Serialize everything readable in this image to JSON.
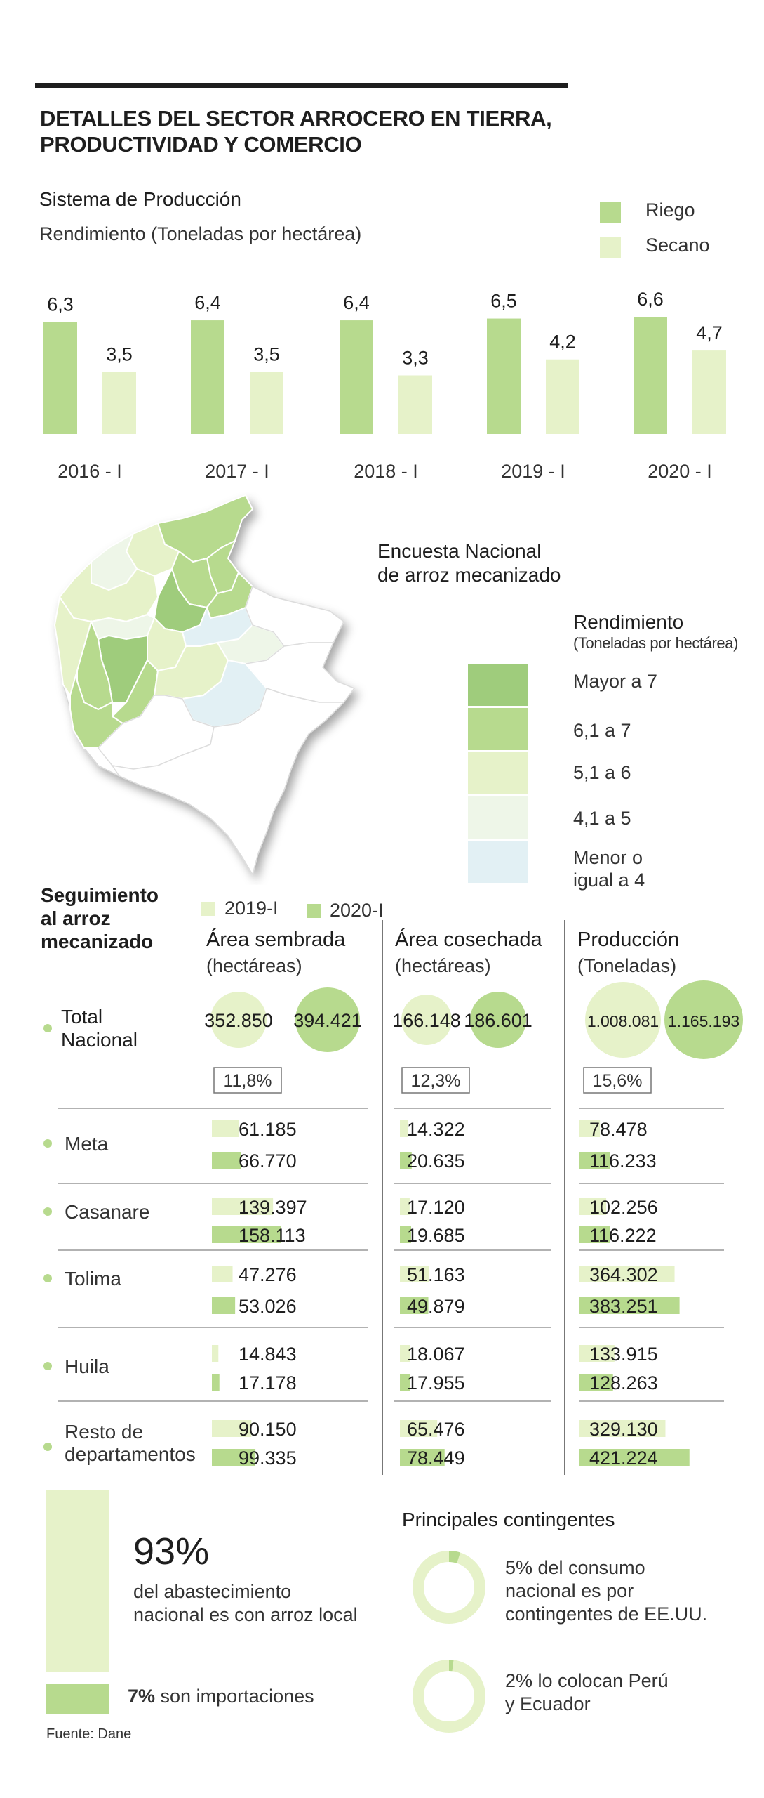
{
  "title_line1": "DETALLES DEL SECTOR ARROCERO EN TIERRA,",
  "title_line2": "PRODUCTIVIDAD Y COMERCIO",
  "colors": {
    "riego": "#b7da8e",
    "secano": "#e6f2c9",
    "mayor7": "#9fcc7c",
    "r61_7": "#b7da8e",
    "r51_6": "#e6f2c9",
    "r41_5": "#eef6e8",
    "menor4": "#e2f0f4",
    "bar2019": "#e6f2c9",
    "bar2020": "#b7da8e"
  },
  "production": {
    "heading": "Sistema de Producción",
    "subheading": "Rendimiento (Toneladas por hectárea)",
    "legend": [
      "Riego",
      "Secano"
    ]
  },
  "chart_data": {
    "type": "bar",
    "categories": [
      "2016 - I",
      "2017 - I",
      "2018 - I",
      "2019 - I",
      "2020 - I"
    ],
    "series": [
      {
        "name": "Riego",
        "values": [
          6.3,
          6.4,
          6.4,
          6.5,
          6.6
        ]
      },
      {
        "name": "Secano",
        "values": [
          3.5,
          3.5,
          3.3,
          4.2,
          4.7
        ]
      }
    ],
    "value_labels": {
      "Riego": [
        "6,3",
        "6,4",
        "6,4",
        "6,5",
        "6,6"
      ],
      "Secano": [
        "3,5",
        "3,5",
        "3,3",
        "4,2",
        "4,7"
      ]
    },
    "title": "Sistema de Producción",
    "ylabel": "Rendimiento (Toneladas por hectárea)",
    "ylim": [
      0,
      7
    ],
    "grid": false,
    "legend_position": "top-right"
  },
  "map": {
    "heading_line1": "Encuesta Nacional",
    "heading_line2": "de arroz mecanizado",
    "legend_title": "Rendimiento",
    "legend_subtitle": "(Toneladas por hectárea)",
    "legend": [
      "Mayor a 7",
      "6,1 a 7",
      "5,1 a 6",
      "4,1 a 5",
      "Menor o",
      "igual a 4"
    ]
  },
  "tracking": {
    "heading": [
      "Seguimiento",
      "al arroz",
      "mecanizado"
    ],
    "legend": [
      "2019-I",
      "2020-I"
    ],
    "columns": [
      {
        "title": "Área sembrada",
        "unit": "(hectáreas)"
      },
      {
        "title": "Área cosechada",
        "unit": "(hectáreas)"
      },
      {
        "title": "Producción",
        "unit": "(Toneladas)"
      }
    ],
    "total_label": [
      "Total",
      "Nacional"
    ],
    "totals": [
      {
        "v2019": "352.850",
        "v2020": "394.421",
        "change": "11,8%"
      },
      {
        "v2019": "166.148",
        "v2020": "186.601",
        "change": "12,3%"
      },
      {
        "v2019": "1.008.081",
        "v2020": "1.165.193",
        "change": "15,6%"
      }
    ],
    "rows": [
      {
        "label": [
          "Meta"
        ],
        "cols": [
          {
            "v2019": "61.185",
            "n2019": 61185,
            "v2020": "66.770",
            "n2020": 66770
          },
          {
            "v2019": "14.322",
            "n2019": 14322,
            "v2020": "20.635",
            "n2020": 20635
          },
          {
            "v2019": "78.478",
            "n2019": 78478,
            "v2020": "116.233",
            "n2020": 116233
          }
        ]
      },
      {
        "label": [
          "Casanare"
        ],
        "cols": [
          {
            "v2019": "139.397",
            "n2019": 139397,
            "v2020": "158.113",
            "n2020": 158113
          },
          {
            "v2019": "17.120",
            "n2019": 17120,
            "v2020": "19.685",
            "n2020": 19685
          },
          {
            "v2019": "102.256",
            "n2019": 102256,
            "v2020": "116.222",
            "n2020": 116222
          }
        ]
      },
      {
        "label": [
          "Tolima"
        ],
        "cols": [
          {
            "v2019": "47.276",
            "n2019": 47276,
            "v2020": "53.026",
            "n2020": 53026
          },
          {
            "v2019": "51.163",
            "n2019": 51163,
            "v2020": "49.879",
            "n2020": 49879
          },
          {
            "v2019": "364.302",
            "n2019": 364302,
            "v2020": "383.251",
            "n2020": 383251
          }
        ]
      },
      {
        "label": [
          "Huila"
        ],
        "cols": [
          {
            "v2019": "14.843",
            "n2019": 14843,
            "v2020": "17.178",
            "n2020": 17178
          },
          {
            "v2019": "18.067",
            "n2019": 18067,
            "v2020": "17.955",
            "n2020": 17955
          },
          {
            "v2019": "133.915",
            "n2019": 133915,
            "v2020": "128.263",
            "n2020": 128263
          }
        ]
      },
      {
        "label": [
          "Resto de",
          "departamentos"
        ],
        "cols": [
          {
            "v2019": "90.150",
            "n2019": 90150,
            "v2020": "99.335",
            "n2020": 99335
          },
          {
            "v2019": "65.476",
            "n2019": 65476,
            "v2020": "78.449",
            "n2020": 78449
          },
          {
            "v2019": "329.130",
            "n2019": 329130,
            "v2020": "421.224",
            "n2020": 421224
          }
        ]
      }
    ]
  },
  "supply": {
    "local_pct_value": 93,
    "local_pct": "93%",
    "local_text_line1": "del abastecimiento",
    "local_text_line2": "nacional es con arroz local",
    "import_pct_value": 7,
    "import_pct": "7%",
    "import_text": " son importaciones"
  },
  "contingents": {
    "heading": "Principales contingentes",
    "items": [
      {
        "pct": 5,
        "line1": "5% del consumo",
        "line2": "nacional es por",
        "line3": "contingentes de EE.UU."
      },
      {
        "pct": 2,
        "line1": "2% lo colocan Perú",
        "line2": "y Ecuador",
        "line3": ""
      }
    ]
  },
  "source": "Fuente: Dane"
}
